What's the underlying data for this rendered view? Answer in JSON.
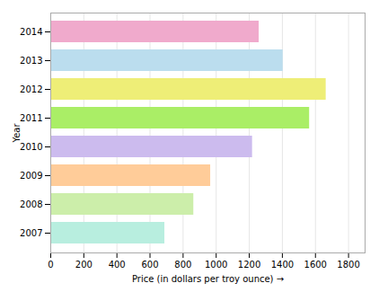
{
  "chart_data": {
    "type": "bar",
    "orientation": "horizontal",
    "categories": [
      "2007",
      "2008",
      "2009",
      "2010",
      "2011",
      "2012",
      "2013",
      "2014"
    ],
    "values": [
      695,
      870,
      972,
      1225,
      1570,
      1670,
      1410,
      1265
    ],
    "colors": [
      "#b8eedf",
      "#cceeaa",
      "#ffcc99",
      "#ccbbee",
      "#aaee66",
      "#eeee77",
      "#bbddee",
      "#f0aacc"
    ],
    "xlabel": "Price (in dollars per troy ounce)",
    "ylabel": "Year",
    "xlim": [
      0,
      1900
    ],
    "xticks": [
      0,
      200,
      400,
      600,
      800,
      1000,
      1200,
      1400,
      1600,
      1800
    ],
    "grid": true
  }
}
